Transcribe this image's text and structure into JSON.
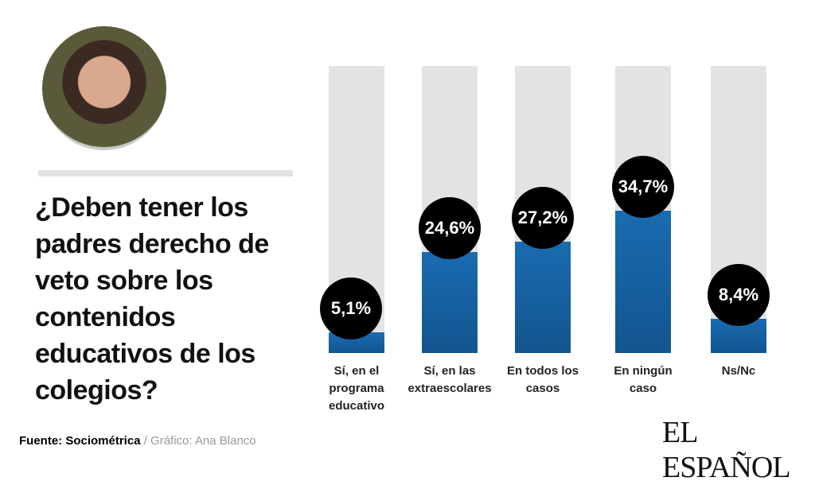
{
  "chart_data": {
    "type": "bar",
    "title": "¿Deben tener los padres derecho de veto sobre los contenidos educativos de los colegios?",
    "categories": [
      "Sí, en el programa educativo",
      "Sí, en las extraescolares",
      "En todos los casos",
      "En ningún caso",
      "Ns/Nc"
    ],
    "values": [
      5.1,
      24.6,
      27.2,
      34.7,
      8.4
    ],
    "value_labels": [
      "5,1%",
      "24,6%",
      "27,2%",
      "34,7%",
      "8,4%"
    ],
    "color": "#1a6bb0",
    "ylim": [
      0,
      70
    ],
    "source": "Fuente: Sociométrica",
    "credit": "/ Gráfico: Ana Blanco",
    "logo": "EL ESPAÑOL"
  }
}
